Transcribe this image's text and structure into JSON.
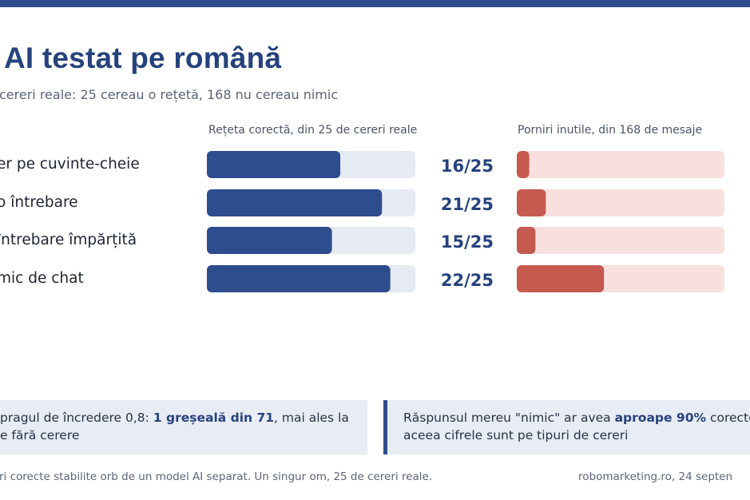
{
  "header": {
    "title": "AI testat pe română",
    "subtitle": "cereri reale: 25 cereau o rețetă, 168 nu cereau nimic"
  },
  "chart_data": {
    "type": "bar",
    "categories": [
      "er pe cuvinte-cheie",
      "o întrebare",
      "întrebare împărțită",
      "mic de chat"
    ],
    "panels": [
      {
        "label": "Rețeta corectă, din 25 de cereri reale",
        "values": [
          16,
          21,
          15,
          22
        ],
        "max": 25,
        "value_labels": [
          "16/25",
          "21/25",
          "15/25",
          "22/25"
        ],
        "bar_color": "#2e4d8e",
        "track_color": "#e6eaf2"
      },
      {
        "label": "Porniri inutile, din 168 de mesaje",
        "values": [
          0.06,
          0.14,
          0.09,
          0.42
        ],
        "max": 1,
        "bar_color": "#c55a50",
        "track_color": "#f7e0de"
      }
    ]
  },
  "notes": {
    "left": {
      "pre": "pragul de încredere 0,8: ",
      "bold": "1 greșeală din 71",
      "post": ", mai ales la",
      "line2": "e fără cerere"
    },
    "right": {
      "pre": "Răspunsul mereu \"nimic\" ar avea ",
      "bold": "aproape 90%",
      "post": " corecte",
      "line2": "aceea cifrele sunt pe tipuri de cereri"
    }
  },
  "footer": {
    "left": "ri corecte stabilite orb de un model AI separat. Un singur om, 25 de cereri reale.",
    "right": "robomarketing.ro, 24 septen"
  },
  "colors": {
    "accent": "#2e4d8e",
    "title": "#26427e",
    "warn": "#c55a50"
  }
}
